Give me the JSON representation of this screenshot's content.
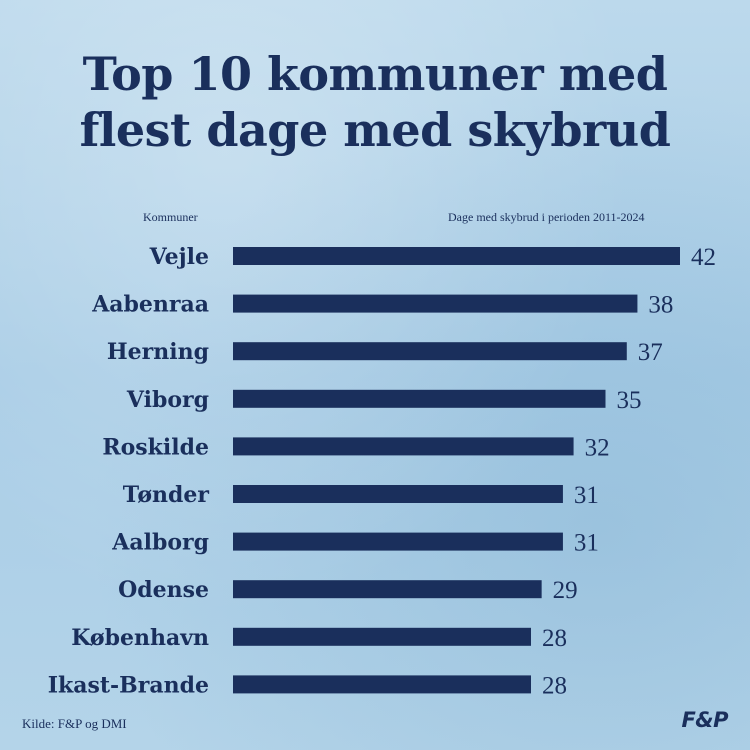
{
  "header": {
    "title_line1": "Top 10 kommuner med",
    "title_line2": "flest dage med skybrud"
  },
  "axis": {
    "left_label": "Kommuner",
    "right_label": "Dage med skybrud i perioden 2011-2024"
  },
  "footer": {
    "source": "Kilde: F&P og DMI",
    "logo": "F&P"
  },
  "colors": {
    "bar": "#1a2f5c",
    "text": "#1a2f5c",
    "background": "#b9d7ea"
  },
  "chart_data": {
    "type": "bar",
    "orientation": "horizontal",
    "title": "Top 10 kommuner med flest dage med skybrud",
    "xlabel": "Dage med skybrud i perioden 2011-2024",
    "ylabel": "Kommuner",
    "categories": [
      "Vejle",
      "Aabenraa",
      "Herning",
      "Viborg",
      "Roskilde",
      "Tønder",
      "Aalborg",
      "Odense",
      "København",
      "Ikast-Brande"
    ],
    "values": [
      42,
      38,
      37,
      35,
      32,
      31,
      31,
      29,
      28,
      28
    ],
    "xlim": [
      0,
      42
    ],
    "grid": false,
    "legend": "none"
  }
}
